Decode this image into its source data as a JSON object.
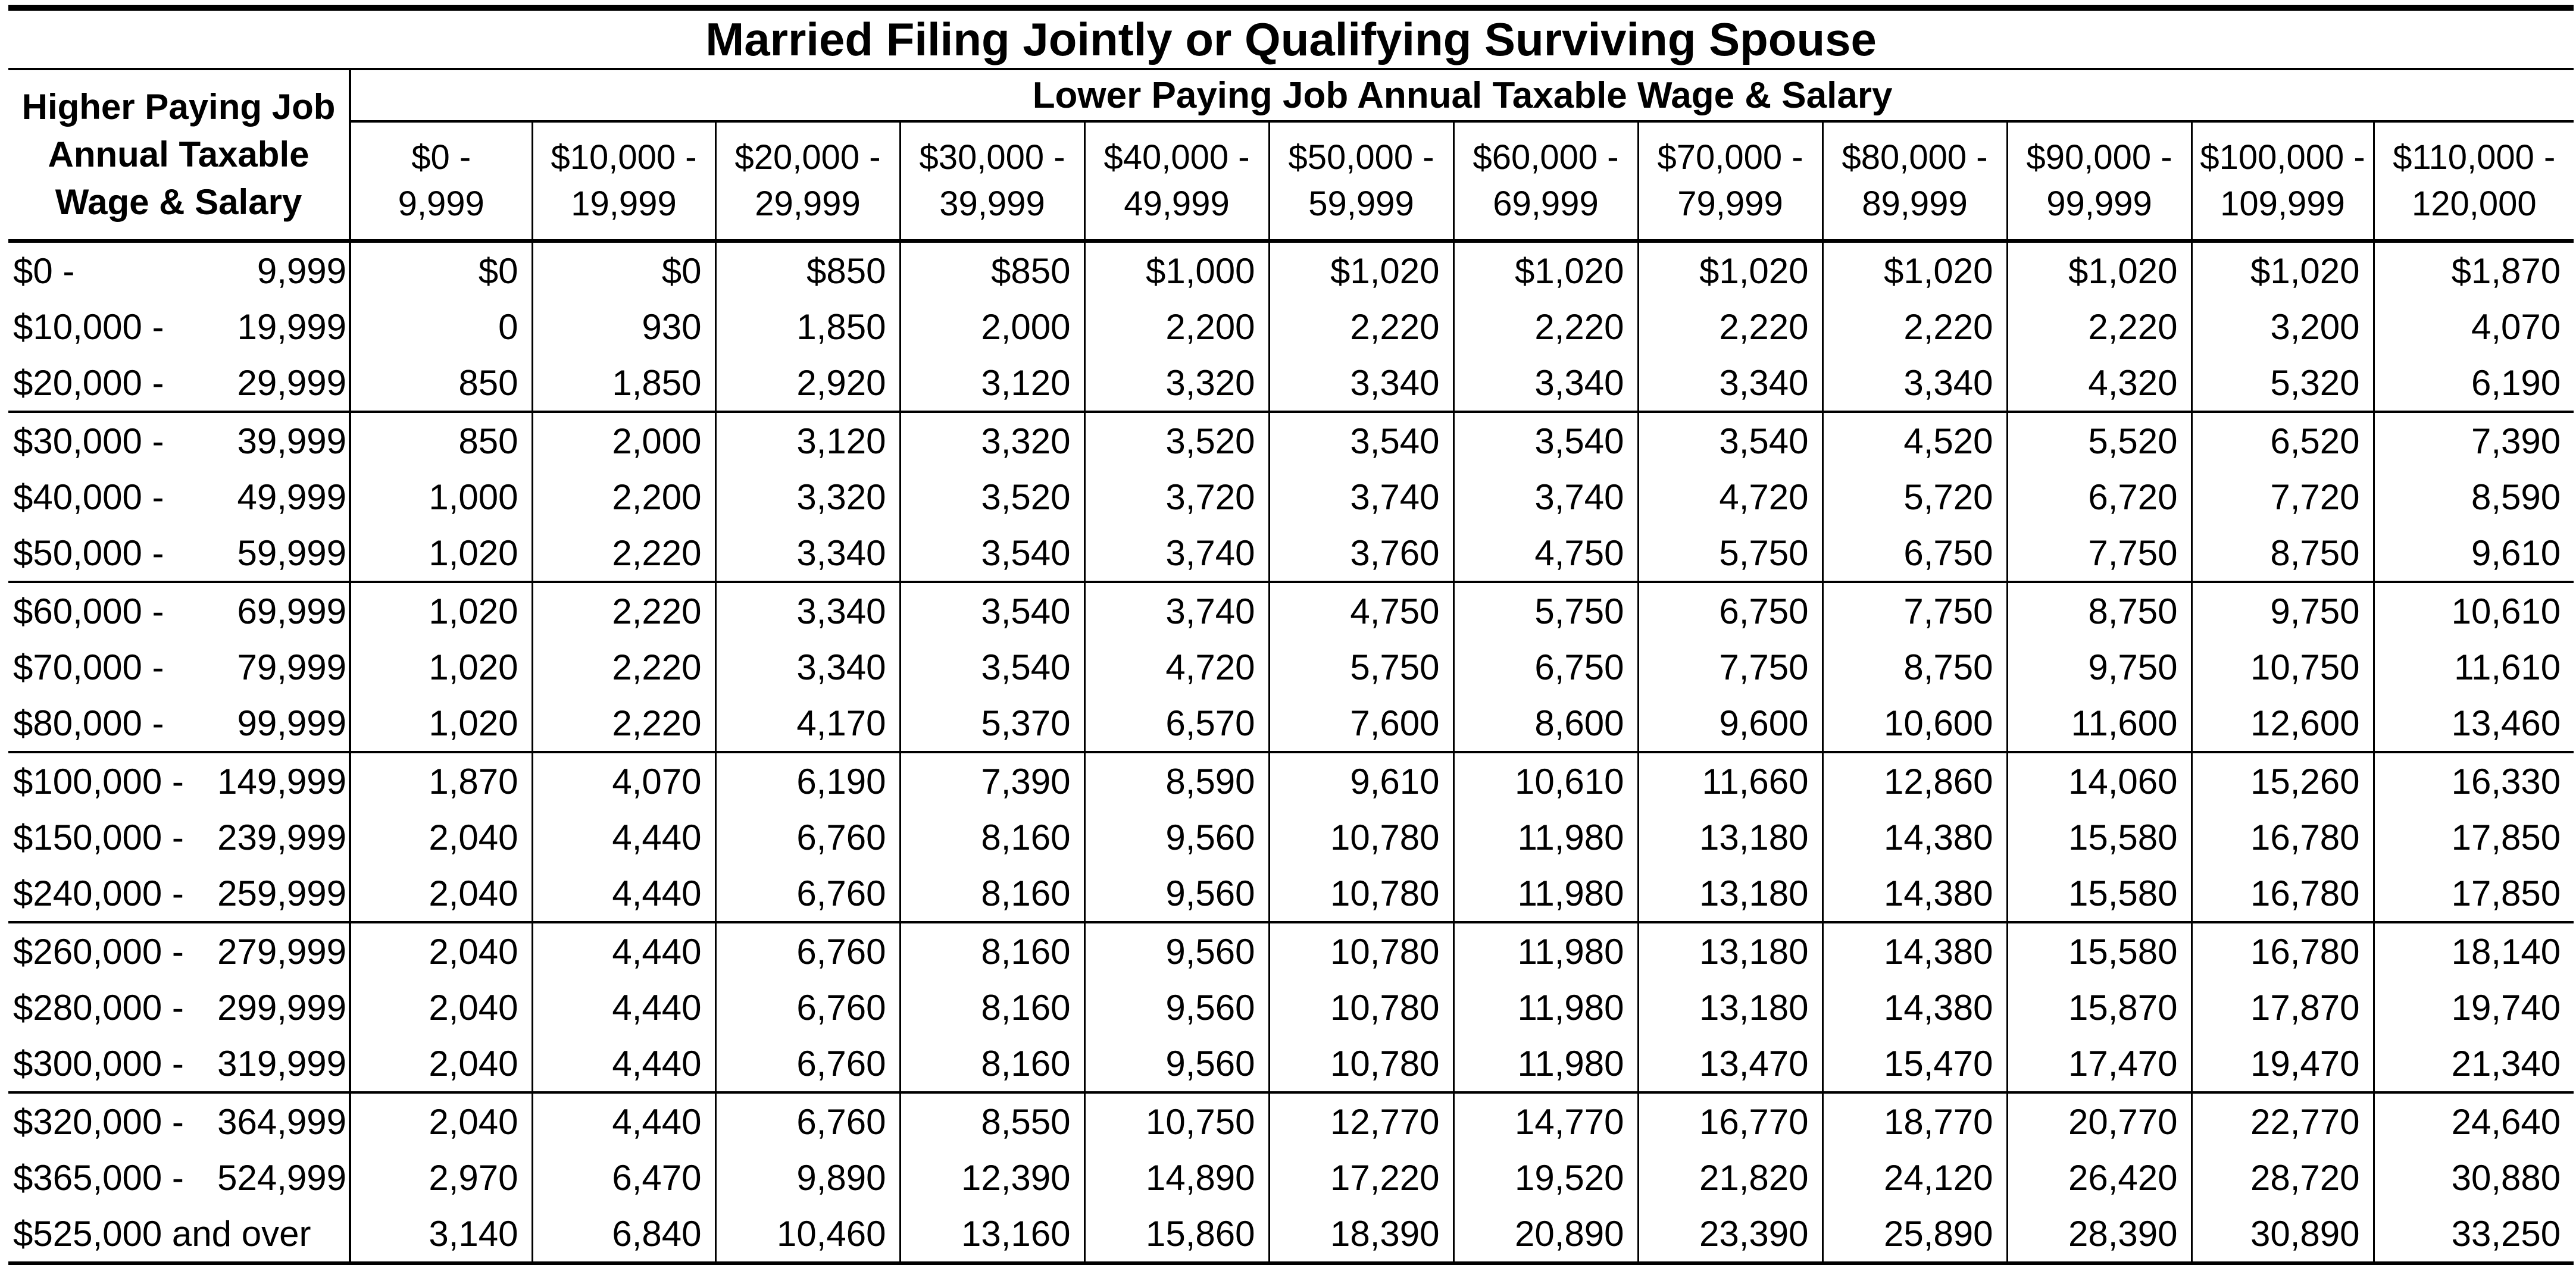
{
  "table": {
    "title": "Married Filing Jointly or Qualifying Surviving Spouse",
    "row_header": [
      "Higher Paying Job",
      "Annual Taxable",
      "Wage & Salary"
    ],
    "column_group_header": "Lower Paying Job Annual Taxable Wage & Salary",
    "columns": [
      [
        "$0 -",
        "9,999"
      ],
      [
        "$10,000 -",
        "19,999"
      ],
      [
        "$20,000 -",
        "29,999"
      ],
      [
        "$30,000 -",
        "39,999"
      ],
      [
        "$40,000 -",
        "49,999"
      ],
      [
        "$50,000 -",
        "59,999"
      ],
      [
        "$60,000 -",
        "69,999"
      ],
      [
        "$70,000 -",
        "79,999"
      ],
      [
        "$80,000 -",
        "89,999"
      ],
      [
        "$90,000 -",
        "99,999"
      ],
      [
        "$100,000 -",
        "109,999"
      ],
      [
        "$110,000 -",
        "120,000"
      ]
    ],
    "rows": [
      {
        "low": "$0 -",
        "high": "9,999",
        "values": [
          "$0",
          "$0",
          "$850",
          "$850",
          "$1,000",
          "$1,020",
          "$1,020",
          "$1,020",
          "$1,020",
          "$1,020",
          "$1,020",
          "$1,870"
        ]
      },
      {
        "low": "$10,000 -",
        "high": "19,999",
        "values": [
          "0",
          "930",
          "1,850",
          "2,000",
          "2,200",
          "2,220",
          "2,220",
          "2,220",
          "2,220",
          "2,220",
          "3,200",
          "4,070"
        ]
      },
      {
        "low": "$20,000 -",
        "high": "29,999",
        "values": [
          "850",
          "1,850",
          "2,920",
          "3,120",
          "3,320",
          "3,340",
          "3,340",
          "3,340",
          "3,340",
          "4,320",
          "5,320",
          "6,190"
        ]
      },
      {
        "low": "$30,000 -",
        "high": "39,999",
        "values": [
          "850",
          "2,000",
          "3,120",
          "3,320",
          "3,520",
          "3,540",
          "3,540",
          "3,540",
          "4,520",
          "5,520",
          "6,520",
          "7,390"
        ]
      },
      {
        "low": "$40,000 -",
        "high": "49,999",
        "values": [
          "1,000",
          "2,200",
          "3,320",
          "3,520",
          "3,720",
          "3,740",
          "3,740",
          "4,720",
          "5,720",
          "6,720",
          "7,720",
          "8,590"
        ]
      },
      {
        "low": "$50,000 -",
        "high": "59,999",
        "values": [
          "1,020",
          "2,220",
          "3,340",
          "3,540",
          "3,740",
          "3,760",
          "4,750",
          "5,750",
          "6,750",
          "7,750",
          "8,750",
          "9,610"
        ]
      },
      {
        "low": "$60,000 -",
        "high": "69,999",
        "values": [
          "1,020",
          "2,220",
          "3,340",
          "3,540",
          "3,740",
          "4,750",
          "5,750",
          "6,750",
          "7,750",
          "8,750",
          "9,750",
          "10,610"
        ]
      },
      {
        "low": "$70,000 -",
        "high": "79,999",
        "values": [
          "1,020",
          "2,220",
          "3,340",
          "3,540",
          "4,720",
          "5,750",
          "6,750",
          "7,750",
          "8,750",
          "9,750",
          "10,750",
          "11,610"
        ]
      },
      {
        "low": "$80,000 -",
        "high": "99,999",
        "values": [
          "1,020",
          "2,220",
          "4,170",
          "5,370",
          "6,570",
          "7,600",
          "8,600",
          "9,600",
          "10,600",
          "11,600",
          "12,600",
          "13,460"
        ]
      },
      {
        "low": "$100,000 -",
        "high": "149,999",
        "values": [
          "1,870",
          "4,070",
          "6,190",
          "7,390",
          "8,590",
          "9,610",
          "10,610",
          "11,660",
          "12,860",
          "14,060",
          "15,260",
          "16,330"
        ]
      },
      {
        "low": "$150,000 -",
        "high": "239,999",
        "values": [
          "2,040",
          "4,440",
          "6,760",
          "8,160",
          "9,560",
          "10,780",
          "11,980",
          "13,180",
          "14,380",
          "15,580",
          "16,780",
          "17,850"
        ]
      },
      {
        "low": "$240,000 -",
        "high": "259,999",
        "values": [
          "2,040",
          "4,440",
          "6,760",
          "8,160",
          "9,560",
          "10,780",
          "11,980",
          "13,180",
          "14,380",
          "15,580",
          "16,780",
          "17,850"
        ]
      },
      {
        "low": "$260,000 -",
        "high": "279,999",
        "values": [
          "2,040",
          "4,440",
          "6,760",
          "8,160",
          "9,560",
          "10,780",
          "11,980",
          "13,180",
          "14,380",
          "15,580",
          "16,780",
          "18,140"
        ]
      },
      {
        "low": "$280,000 -",
        "high": "299,999",
        "values": [
          "2,040",
          "4,440",
          "6,760",
          "8,160",
          "9,560",
          "10,780",
          "11,980",
          "13,180",
          "14,380",
          "15,870",
          "17,870",
          "19,740"
        ]
      },
      {
        "low": "$300,000 -",
        "high": "319,999",
        "values": [
          "2,040",
          "4,440",
          "6,760",
          "8,160",
          "9,560",
          "10,780",
          "11,980",
          "13,470",
          "15,470",
          "17,470",
          "19,470",
          "21,340"
        ]
      },
      {
        "low": "$320,000 -",
        "high": "364,999",
        "values": [
          "2,040",
          "4,440",
          "6,760",
          "8,550",
          "10,750",
          "12,770",
          "14,770",
          "16,770",
          "18,770",
          "20,770",
          "22,770",
          "24,640"
        ]
      },
      {
        "low": "$365,000 -",
        "high": "524,999",
        "values": [
          "2,970",
          "6,470",
          "9,890",
          "12,390",
          "14,890",
          "17,220",
          "19,520",
          "21,820",
          "24,120",
          "26,420",
          "28,720",
          "30,880"
        ]
      },
      {
        "low": "$525,000 and over",
        "high": "",
        "values": [
          "3,140",
          "6,840",
          "10,460",
          "13,160",
          "15,860",
          "18,390",
          "20,890",
          "23,390",
          "25,890",
          "28,390",
          "30,890",
          "33,250"
        ]
      }
    ]
  }
}
